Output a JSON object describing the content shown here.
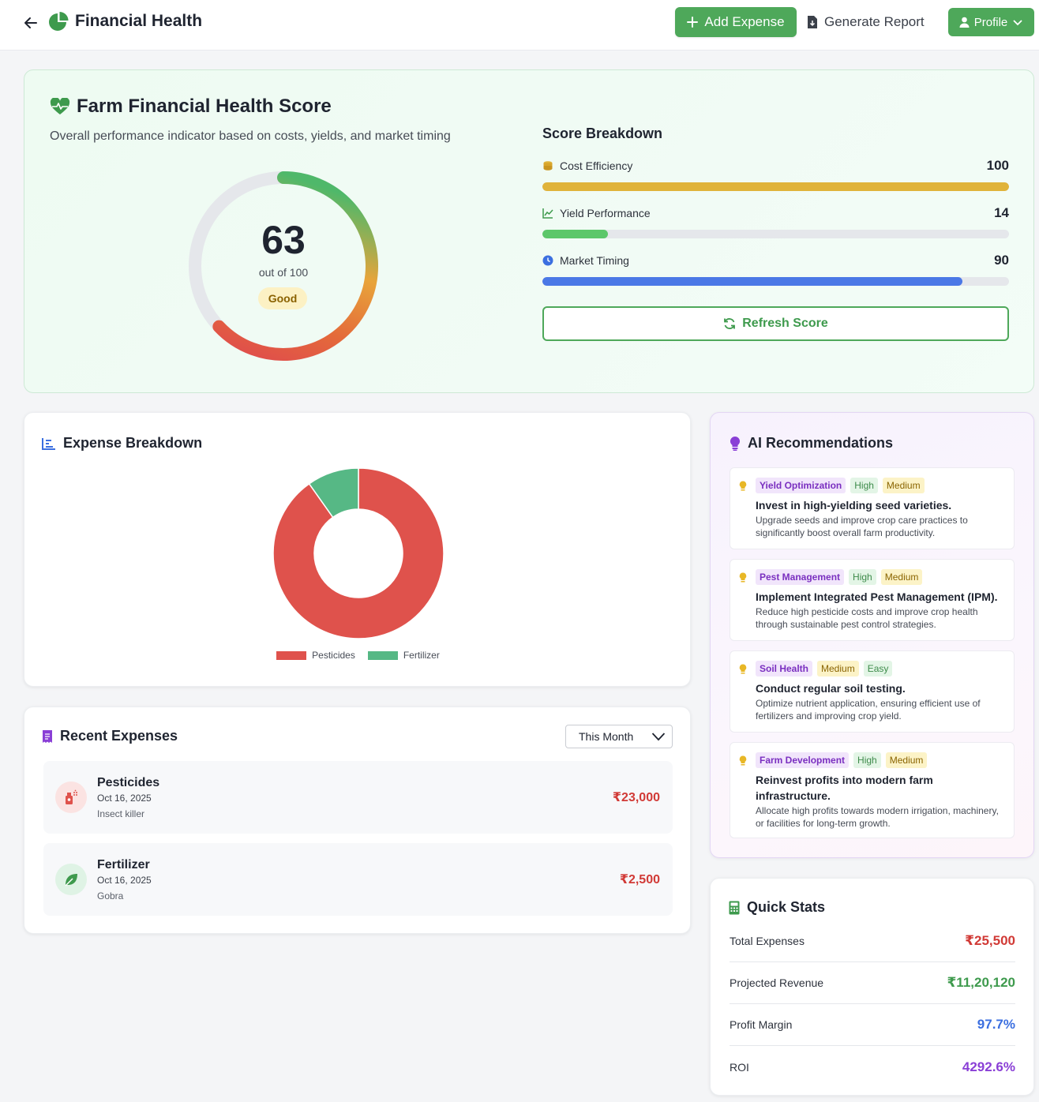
{
  "header": {
    "title": "Financial Health",
    "add_expense_label": "Add Expense",
    "generate_report_label": "Generate Report",
    "profile_label": "Profile"
  },
  "health": {
    "title": "Farm Financial Health Score",
    "subtitle": "Overall performance indicator based on costs, yields, and market timing",
    "score": "63",
    "out_of": "out of 100",
    "badge": "Good",
    "score_fraction": 0.63,
    "breakdown_title": "Score Breakdown",
    "metrics": [
      {
        "label": "Cost Efficiency",
        "value": "100",
        "fraction": 1.0,
        "color": "#e0b33a",
        "icon": "coins-icon"
      },
      {
        "label": "Yield Performance",
        "value": "14",
        "fraction": 0.14,
        "color": "#5cc76a",
        "icon": "chart-line-icon"
      },
      {
        "label": "Market Timing",
        "value": "90",
        "fraction": 0.9,
        "color": "#4b78e6",
        "icon": "clock-icon"
      }
    ],
    "refresh_label": "Refresh Score"
  },
  "expense_breakdown": {
    "title": "Expense Breakdown"
  },
  "chart_data": {
    "type": "pie",
    "categories": [
      "Pesticides",
      "Fertilizer"
    ],
    "values": [
      23000,
      2500
    ],
    "colors": [
      "#df524c",
      "#56b885"
    ],
    "legend_position": "bottom"
  },
  "recent_expenses": {
    "title": "Recent Expenses",
    "filter": "This Month",
    "items": [
      {
        "name": "Pesticides",
        "date": "Oct 16, 2025",
        "note": "Insect killer",
        "amount": "₹23,000",
        "icon": "spray-bottle-icon"
      },
      {
        "name": "Fertilizer",
        "date": "Oct 16, 2025",
        "note": "Gobra",
        "amount": "₹2,500",
        "icon": "leaf-icon"
      }
    ]
  },
  "ai": {
    "title": "AI Recommendations",
    "items": [
      {
        "category": "Yield Optimization",
        "impact": "High",
        "effort": "Medium",
        "title": "Invest in high-yielding seed varieties.",
        "desc": "Upgrade seeds and improve crop care practices to significantly boost overall farm productivity."
      },
      {
        "category": "Pest Management",
        "impact": "High",
        "effort": "Medium",
        "title": "Implement Integrated Pest Management (IPM).",
        "desc": "Reduce high pesticide costs and improve crop health through sustainable pest control strategies."
      },
      {
        "category": "Soil Health",
        "impact": "Medium",
        "effort": "Easy",
        "title": "Conduct regular soil testing.",
        "desc": "Optimize nutrient application, ensuring efficient use of fertilizers and improving crop yield."
      },
      {
        "category": "Farm Development",
        "impact": "High",
        "effort": "Medium",
        "title": "Reinvest profits into modern farm infrastructure.",
        "desc": "Allocate high profits towards modern irrigation, machinery, or facilities for long-term growth."
      }
    ]
  },
  "quick_stats": {
    "title": "Quick Stats",
    "items": [
      {
        "label": "Total Expenses",
        "value": "₹25,500",
        "color": "#d13a36"
      },
      {
        "label": "Projected Revenue",
        "value": "₹11,20,120",
        "color": "#3e9a4d"
      },
      {
        "label": "Profit Margin",
        "value": "97.7%",
        "color": "#3b6fe0"
      },
      {
        "label": "ROI",
        "value": "4292.6%",
        "color": "#8a3fd6"
      }
    ]
  }
}
